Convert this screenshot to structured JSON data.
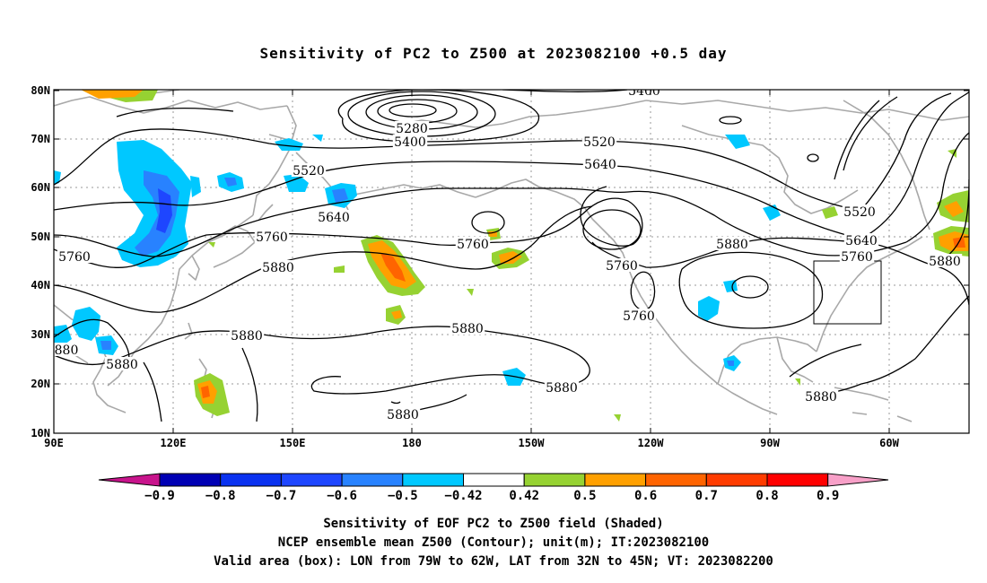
{
  "title": "Sensitivity of PC2 to Z500 at 2023082100 +0.5 day",
  "map": {
    "lat_ticks": [
      "80N",
      "70N",
      "60N",
      "50N",
      "40N",
      "30N",
      "20N",
      "10N"
    ],
    "lon_ticks": [
      "90E",
      "120E",
      "150E",
      "180",
      "150W",
      "120W",
      "90W",
      "60W"
    ],
    "contour_labels": [
      {
        "text": "5400"
      },
      {
        "text": "5280"
      },
      {
        "text": "5400"
      },
      {
        "text": "5520"
      },
      {
        "text": "5520"
      },
      {
        "text": "5640"
      },
      {
        "text": "5640"
      },
      {
        "text": "5760"
      },
      {
        "text": "5760"
      },
      {
        "text": "5760"
      },
      {
        "text": "5880"
      },
      {
        "text": "5760"
      },
      {
        "text": "5760"
      },
      {
        "text": "5880"
      },
      {
        "text": "5520"
      },
      {
        "text": "5640"
      },
      {
        "text": "5760"
      },
      {
        "text": "5880"
      },
      {
        "text": "5880"
      },
      {
        "text": "880"
      },
      {
        "text": "5880"
      },
      {
        "text": "5880"
      },
      {
        "text": "5880"
      },
      {
        "text": "5880"
      },
      {
        "text": "5880"
      }
    ],
    "valid_box": {
      "lon_from": "79W",
      "lon_to": "62W",
      "lat_from": "32N",
      "lat_to": "45N"
    }
  },
  "colorbar": {
    "labels": [
      "-0.9",
      "-0.8",
      "-0.7",
      "-0.6",
      "-0.5",
      "-0.42",
      "0.42",
      "0.5",
      "0.6",
      "0.7",
      "0.8",
      "0.9"
    ],
    "colors": [
      "#0000b4",
      "#0a32f0",
      "#1e46ff",
      "#2882ff",
      "#00c8ff",
      "#ffffff",
      "#96d232",
      "#ffa000",
      "#ff6400",
      "#ff3c00",
      "#ff0000"
    ],
    "under_color": "#c8148c",
    "over_color": "#f8a0c8"
  },
  "captions": [
    "Sensitivity of EOF PC2 to Z500 field (Shaded)",
    "NCEP ensemble mean Z500 (Contour); unit(m); IT:2023082100",
    "Valid area (box): LON from 79W to 62W, LAT from 32N to 45N; VT: 2023082200"
  ]
}
